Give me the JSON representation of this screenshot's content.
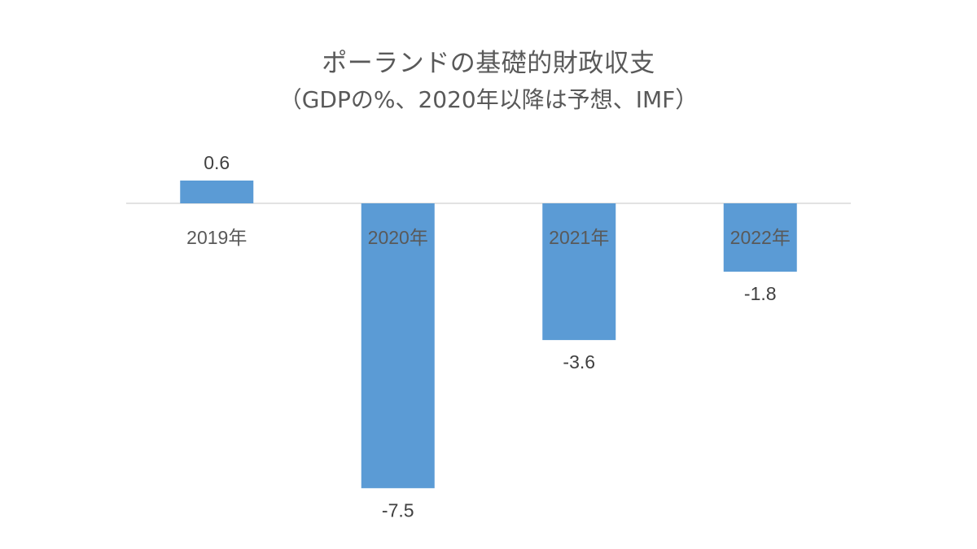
{
  "chart_data": {
    "type": "bar",
    "title": "ポーランドの基礎的財政収支",
    "subtitle": "（GDPの%、2020年以降は予想、IMF）",
    "categories": [
      "2019年",
      "2020年",
      "2021年",
      "2022年"
    ],
    "values": [
      0.6,
      -7.5,
      -3.6,
      -1.8
    ],
    "data_labels": [
      "0.6",
      "-7.5",
      "-3.6",
      "-1.8"
    ],
    "xlabel": "",
    "ylabel": "",
    "ylim": [
      -8,
      1
    ],
    "grid": false,
    "legend": "none",
    "bar_color": "#5B9BD5",
    "axis_color": "#D9D9D9"
  }
}
